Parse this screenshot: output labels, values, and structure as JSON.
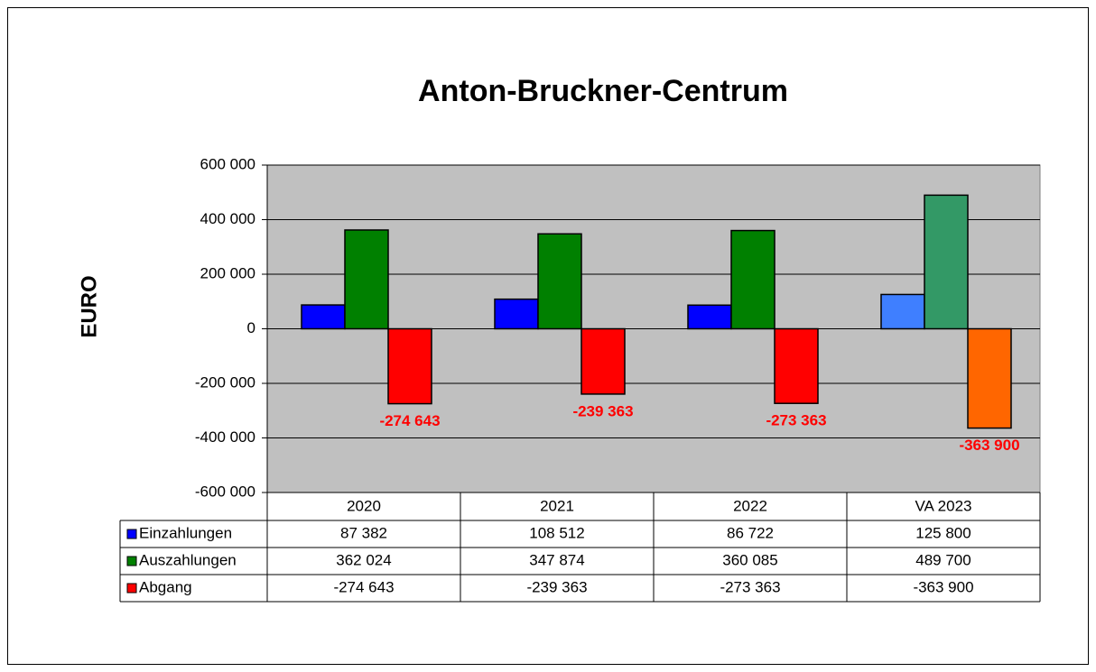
{
  "chart_data": {
    "type": "bar",
    "title": "Anton-Bruckner-Centrum",
    "y_label": "EURO",
    "categories": [
      "2020",
      "2021",
      "2022",
      "VA 2023"
    ],
    "series": [
      {
        "name": "Einzahlungen",
        "color": "#0000ff",
        "colors": [
          "#0000ff",
          "#0000ff",
          "#0000ff",
          "#3f7fff"
        ],
        "values": [
          87382,
          108512,
          86722,
          125800
        ],
        "value_labels": [
          "87 382",
          "108 512",
          "86 722",
          "125 800"
        ]
      },
      {
        "name": "Auszahlungen",
        "color": "#008000",
        "colors": [
          "#008000",
          "#008000",
          "#008000",
          "#339966"
        ],
        "values": [
          362024,
          347874,
          360085,
          489700
        ],
        "value_labels": [
          "362 024",
          "347 874",
          "360 085",
          "489 700"
        ]
      },
      {
        "name": "Abgang",
        "color": "#ff0000",
        "colors": [
          "#ff0000",
          "#ff0000",
          "#ff0000",
          "#ff6600"
        ],
        "values": [
          -274643,
          -239363,
          -273363,
          -363900
        ],
        "value_labels": [
          "-274 643",
          "-239 363",
          "-273 363",
          "-363 900"
        ],
        "data_labels": true
      }
    ],
    "ylim": [
      -600000,
      600000
    ],
    "yticks": [
      {
        "value": -600000,
        "label": "-600 000"
      },
      {
        "value": -400000,
        "label": "-400 000"
      },
      {
        "value": -200000,
        "label": "-200 000"
      },
      0,
      {
        "value": 200000,
        "label": "200 000"
      },
      {
        "value": 400000,
        "label": "400 000"
      },
      {
        "value": 600000,
        "label": "600 000"
      }
    ],
    "grid": true,
    "data_table": true
  }
}
